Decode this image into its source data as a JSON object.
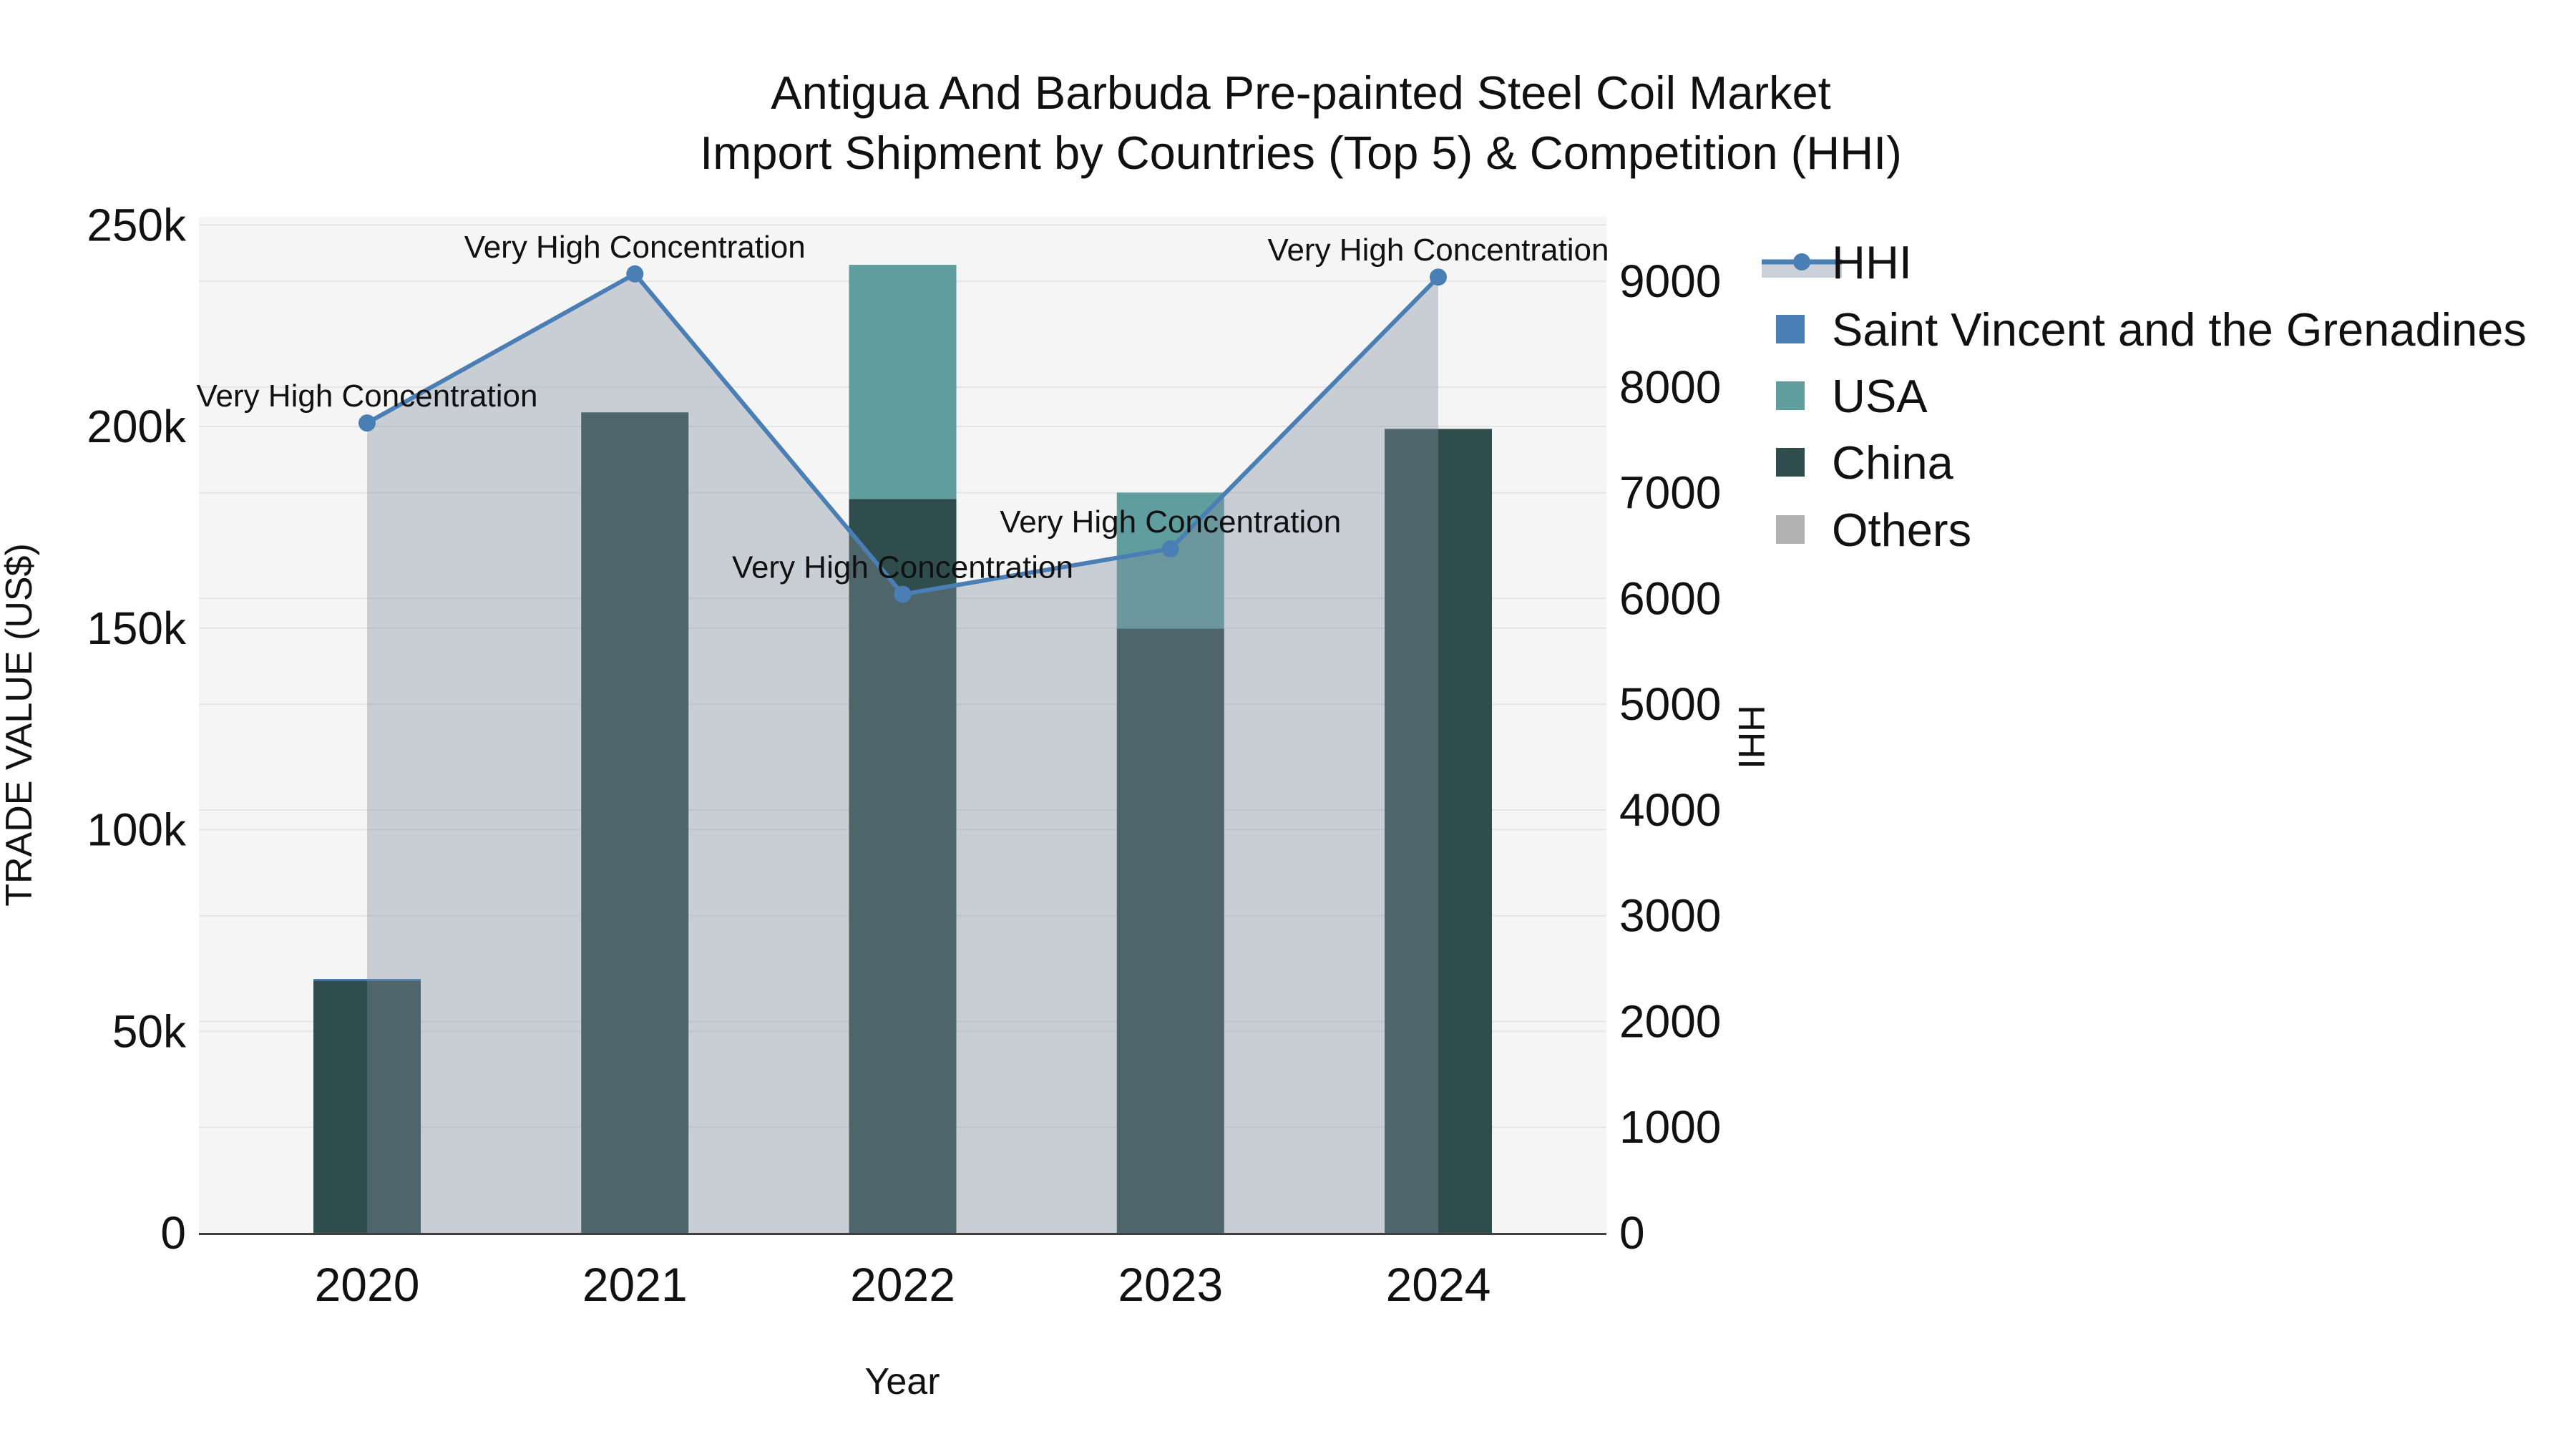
{
  "title": {
    "line1": "Antigua And Barbuda Pre-painted Steel Coil Market",
    "line2": "Import Shipment by Countries (Top 5) & Competition (HHI)"
  },
  "chart_data": {
    "type": "bar+line",
    "title": "Antigua And Barbuda Pre-painted Steel Coil Market — Import Shipment by Countries (Top 5) & Competition (HHI)",
    "categories": [
      "2020",
      "2021",
      "2022",
      "2023",
      "2024"
    ],
    "xlabel": "Year",
    "y_left": {
      "label": "TRADE VALUE (US$)",
      "tick_values": [
        0,
        50000,
        100000,
        150000,
        200000,
        250000
      ],
      "tick_labels": [
        "0",
        "50k",
        "100k",
        "150k",
        "200k",
        "250k"
      ],
      "range": [
        0,
        252000
      ]
    },
    "y_right": {
      "label": "HHI",
      "tick_values": [
        0,
        1000,
        2000,
        3000,
        4000,
        5000,
        6000,
        7000,
        8000,
        9000
      ],
      "tick_labels": [
        "0",
        "1000",
        "2000",
        "3000",
        "4000",
        "5000",
        "6000",
        "7000",
        "8000",
        "9000"
      ],
      "range": [
        0,
        9610
      ]
    },
    "bar_mode": "stack",
    "bar_series": [
      {
        "name": "Saint Vincent and the Grenadines",
        "color": "#4a7fb5",
        "values": [
          400,
          0,
          0,
          0,
          0
        ]
      },
      {
        "name": "USA",
        "color": "#5f9d9e",
        "values": [
          0,
          0,
          58100,
          33700,
          0
        ]
      },
      {
        "name": "China",
        "color": "#2f4d4d",
        "values": [
          62600,
          203500,
          182000,
          149900,
          199400
        ]
      },
      {
        "name": "Others",
        "color": "#b2b2b2",
        "values": [
          0,
          0,
          0,
          0,
          0
        ]
      }
    ],
    "stack_order": [
      "China",
      "USA",
      "Saint Vincent and the Grenadines",
      "Others"
    ],
    "line_series": {
      "name": "HHI",
      "color": "#4a7fb5",
      "fill_color": "rgba(130,142,160,0.38)",
      "values": [
        7660,
        9070,
        6040,
        6470,
        9040
      ]
    },
    "annotations": [
      {
        "x": "2020",
        "text": "Very High Concentration"
      },
      {
        "x": "2021",
        "text": "Very High Concentration"
      },
      {
        "x": "2022",
        "text": "Very High Concentration"
      },
      {
        "x": "2023",
        "text": "Very High Concentration"
      },
      {
        "x": "2024",
        "text": "Very High Concentration"
      }
    ],
    "grid": true,
    "legend_position": "right",
    "colors": {
      "plot_bg": "#f5f5f5",
      "grid": "#e5e5e5",
      "axis_line": "#3f3f3f",
      "text": "#111111",
      "legend_fill_swatch": "#ccd1d9"
    }
  },
  "legend": {
    "items": [
      {
        "label": "HHI",
        "type": "line",
        "color": "#4a7fb5"
      },
      {
        "label": "Saint Vincent and the Grenadines",
        "type": "square",
        "color": "#4a7fb5"
      },
      {
        "label": "USA",
        "type": "square",
        "color": "#5f9d9e"
      },
      {
        "label": "China",
        "type": "square",
        "color": "#2f4d4d"
      },
      {
        "label": "Others",
        "type": "square",
        "color": "#b2b2b2"
      }
    ]
  }
}
